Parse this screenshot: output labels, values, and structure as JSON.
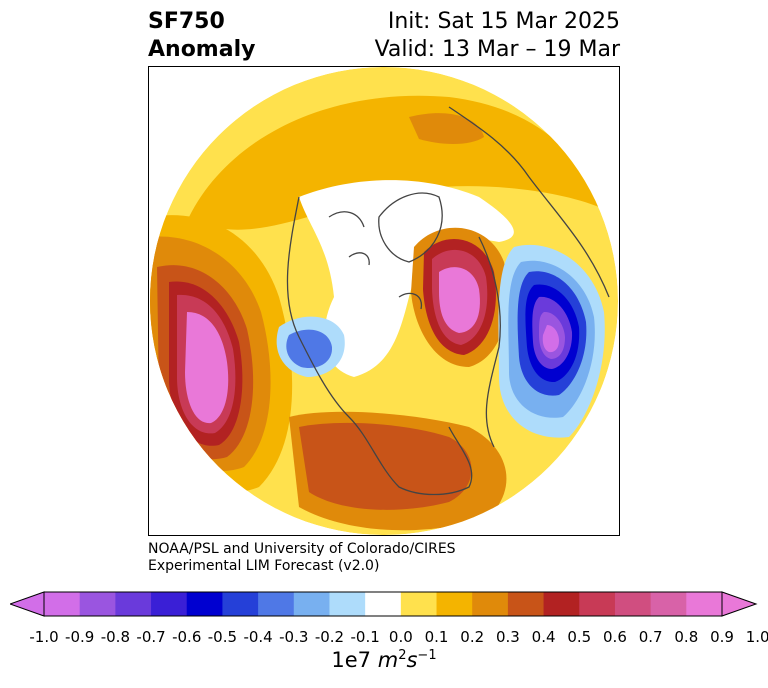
{
  "title": {
    "left_line1": "SF750",
    "left_line2": "Anomaly",
    "right_line1": "Init: Sat 15 Mar 2025",
    "right_line2": "Valid: 13 Mar – 19 Mar"
  },
  "credit": {
    "line1": "NOAA/PSL and University of Colorado/CIRES",
    "line2": "Experimental LIM Forecast (v2.0)"
  },
  "colorbar": {
    "ticks": [
      "-1.0",
      "-0.9",
      "-0.8",
      "-0.7",
      "-0.6",
      "-0.5",
      "-0.4",
      "-0.3",
      "-0.2",
      "-0.1",
      "0.0",
      "0.1",
      "0.2",
      "0.3",
      "0.4",
      "0.5",
      "0.6",
      "0.7",
      "0.8",
      "0.9",
      "1.0"
    ],
    "colors": [
      "#d26ee8",
      "#9a55e0",
      "#6a3adb",
      "#3a1fd6",
      "#0000d0",
      "#2540d8",
      "#4f78e6",
      "#78b0f0",
      "#aedcfb",
      "#ffffff",
      "#ffe14d",
      "#f4b400",
      "#e08a0a",
      "#c85418",
      "#b22222",
      "#c83a56",
      "#d04e80",
      "#d862a8",
      "#e978d8"
    ],
    "units_prefix": "1e7 ",
    "units_math": "m",
    "units_exp1": "2",
    "units_s": "s",
    "units_exp2": "−1"
  },
  "map": {
    "projection": "north-polar-stereographic",
    "field": "streamfunction anomaly at 750 hPa",
    "colors": {
      "yellow": "#ffe14d",
      "gold": "#f4b400",
      "orange": "#e08a0a",
      "darkorange": "#c85418",
      "red": "#b22222",
      "crimson": "#c83a56",
      "rose": "#d04e80",
      "pink": "#d862a8",
      "magenta": "#e978d8",
      "lightblue": "#aedcfb",
      "skyblue": "#78b0f0",
      "blue": "#4f78e6",
      "royal": "#2540d8",
      "deepblue": "#0000d0",
      "violet": "#6a3adb",
      "purple": "#9a55e0",
      "lilac": "#d26ee8",
      "coast": "#444444"
    }
  }
}
